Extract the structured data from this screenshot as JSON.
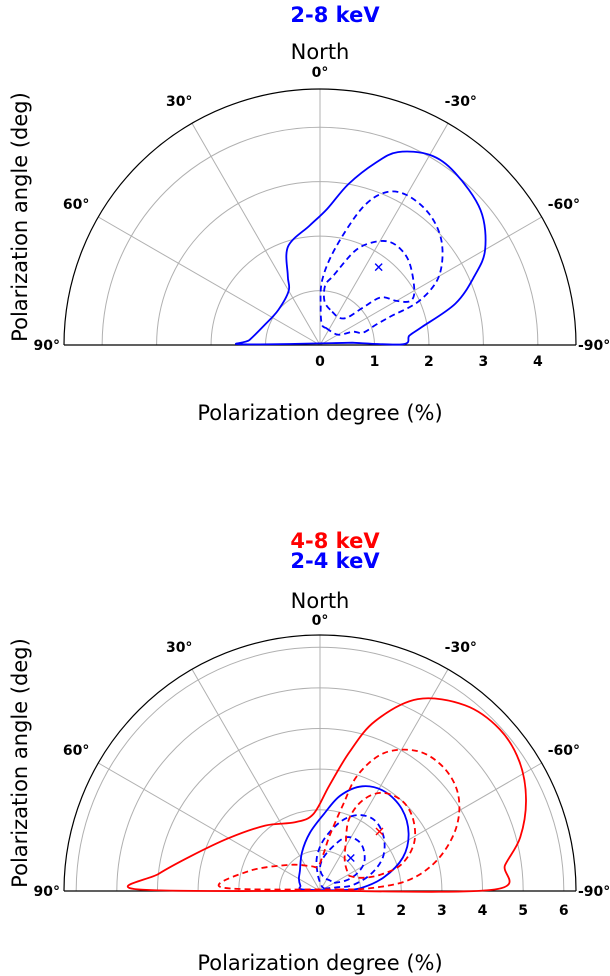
{
  "chart_data": [
    {
      "type": "polar-contour",
      "titles": [
        {
          "text": "2-8 keV",
          "color": "#0000ff"
        }
      ],
      "north_label": "North",
      "xlabel": "Polarization degree (%)",
      "ylabel": "Polarization angle (deg)",
      "radial_range": [
        0,
        4.7
      ],
      "radial_ticks": [
        "0",
        "1",
        "2",
        "3",
        "4"
      ],
      "angle_ticks": [
        {
          "angle": 0,
          "label": "0°"
        },
        {
          "angle": 30,
          "label": "30°"
        },
        {
          "angle": -30,
          "label": "-30°"
        },
        {
          "angle": 60,
          "label": "60°"
        },
        {
          "angle": -60,
          "label": "-60°"
        },
        {
          "angle": 90,
          "label": "90°"
        },
        {
          "angle": -90,
          "label": "-90°"
        }
      ],
      "grid": true,
      "series": [
        {
          "color": "#0000ff",
          "best_fit": {
            "pd": 1.79,
            "angle": -37
          },
          "contours": [
            {
              "style": "dashed",
              "points": [
                [
                  0.65,
                  -20
                ],
                [
                  0.61,
                  -35
                ],
                [
                  0.72,
                  -45
                ],
                [
                  1.05,
                  -49
                ],
                [
                  1.42,
                  -52
                ],
                [
                  1.62,
                  -60
                ],
                [
                  1.84,
                  -64
                ],
                [
                  2.0,
                  -60
                ],
                [
                  2.22,
                  -48
                ],
                [
                  2.3,
                  -40
                ],
                [
                  2.27,
                  -33
                ],
                [
                  2.08,
                  -26
                ],
                [
                  1.82,
                  -20
                ],
                [
                  1.3,
                  -11
                ],
                [
                  1.1,
                  -5
                ],
                [
                  0.8,
                  -6
                ],
                [
                  0.65,
                  -20
                ]
              ]
            },
            {
              "style": "dashed",
              "points": [
                [
                  0.33,
                  -20
                ],
                [
                  0.38,
                  -60
                ],
                [
                  0.65,
                  -68
                ],
                [
                  0.82,
                  -74
                ],
                [
                  1.1,
                  -70
                ],
                [
                  1.4,
                  -68
                ],
                [
                  2.0,
                  -66
                ],
                [
                  2.52,
                  -60
                ],
                [
                  2.92,
                  -50
                ],
                [
                  3.13,
                  -40
                ],
                [
                  3.18,
                  -30
                ],
                [
                  3.04,
                  -23
                ],
                [
                  2.62,
                  -17
                ],
                [
                  1.8,
                  -9
                ],
                [
                  1.2,
                  -2
                ],
                [
                  0.7,
                  -1
                ],
                [
                  0.38,
                  -5
                ],
                [
                  0.33,
                  -20
                ]
              ]
            },
            {
              "style": "solid",
              "points": [
                [
                  0.6,
                  -86
                ],
                [
                  1.52,
                  -89.5
                ],
                [
                  1.65,
                  -84
                ],
                [
                  1.9,
                  -80
                ],
                [
                  2.6,
                  -73
                ],
                [
                  3.1,
                  -66
                ],
                [
                  3.5,
                  -60
                ],
                [
                  3.85,
                  -50
                ],
                [
                  4.02,
                  -38
                ],
                [
                  4.03,
                  -30
                ],
                [
                  3.82,
                  -22
                ],
                [
                  3.5,
                  -17
                ],
                [
                  3.0,
                  -10
                ],
                [
                  2.5,
                  -3
                ],
                [
                  2.2,
                  5
                ],
                [
                  1.9,
                  18
                ],
                [
                  1.4,
                  25
                ],
                [
                  1.15,
                  30
                ],
                [
                  1.0,
                  50
                ],
                [
                  1.08,
                  70
                ],
                [
                  1.3,
                  86
                ],
                [
                  1.42,
                  89.5
                ],
                [
                  0.6,
                  -86
                ]
              ]
            }
          ]
        }
      ]
    },
    {
      "type": "polar-contour",
      "titles": [
        {
          "text": "4-8 keV",
          "color": "#ff0000"
        },
        {
          "text": "2-4 keV",
          "color": "#0000ff"
        }
      ],
      "north_label": "North",
      "xlabel": "Polarization degree (%)",
      "ylabel": "Polarization angle (deg)",
      "radial_range": [
        0,
        6.3
      ],
      "radial_ticks": [
        "0",
        "1",
        "2",
        "3",
        "4",
        "5",
        "6"
      ],
      "angle_ticks": [
        {
          "angle": 0,
          "label": "0°"
        },
        {
          "angle": 30,
          "label": "30°"
        },
        {
          "angle": -30,
          "label": "-30°"
        },
        {
          "angle": 60,
          "label": "60°"
        },
        {
          "angle": -60,
          "label": "-60°"
        },
        {
          "angle": 90,
          "label": "90°"
        },
        {
          "angle": -90,
          "label": "-90°"
        }
      ],
      "grid": true,
      "series": [
        {
          "color": "#0000ff",
          "best_fit": {
            "pd": 1.11,
            "angle": -43
          },
          "contours": [
            {
              "style": "dashed",
              "points": [
                [
                  0.4,
                  -60
                ],
                [
                  0.7,
                  -68
                ],
                [
                  1.0,
                  -65
                ],
                [
                  1.3,
                  -57
                ],
                [
                  1.5,
                  -45
                ],
                [
                  1.55,
                  -35
                ],
                [
                  1.45,
                  -25
                ],
                [
                  1.1,
                  -15
                ],
                [
                  0.8,
                  -5
                ],
                [
                  0.55,
                  0
                ],
                [
                  0.35,
                  -15
                ],
                [
                  0.35,
                  -40
                ],
                [
                  0.4,
                  -60
                ]
              ]
            },
            {
              "style": "dashed",
              "points": [
                [
                  0.12,
                  -60
                ],
                [
                  0.45,
                  -78
                ],
                [
                  0.8,
                  -80
                ],
                [
                  1.3,
                  -72
                ],
                [
                  1.75,
                  -62
                ],
                [
                  2.05,
                  -50
                ],
                [
                  2.2,
                  -38
                ],
                [
                  2.1,
                  -27
                ],
                [
                  1.8,
                  -17
                ],
                [
                  1.3,
                  -5
                ],
                [
                  0.85,
                  5
                ],
                [
                  0.45,
                  8
                ],
                [
                  0.15,
                  -10
                ],
                [
                  0.12,
                  -60
                ]
              ]
            },
            {
              "style": "solid",
              "points": [
                [
                  0.5,
                  -88
                ],
                [
                  1.0,
                  -86
                ],
                [
                  1.6,
                  -78
                ],
                [
                  2.2,
                  -68
                ],
                [
                  2.6,
                  -57
                ],
                [
                  2.85,
                  -45
                ],
                [
                  2.92,
                  -33
                ],
                [
                  2.78,
                  -22
                ],
                [
                  2.4,
                  -12
                ],
                [
                  1.9,
                  -3
                ],
                [
                  1.45,
                  10
                ],
                [
                  1.05,
                  25
                ],
                [
                  0.7,
                  45
                ],
                [
                  0.6,
                  60
                ],
                [
                  0.5,
                  75
                ],
                [
                  0.42,
                  85
                ],
                [
                  0.5,
                  -88
                ]
              ]
            }
          ]
        },
        {
          "color": "#ff0000",
          "best_fit": {
            "pd": 2.07,
            "angle": -45
          },
          "contours": [
            {
              "style": "dashed",
              "points": [
                [
                  0.8,
                  -62
                ],
                [
                  1.05,
                  -72
                ],
                [
                  1.5,
                  -75
                ],
                [
                  2.1,
                  -72
                ],
                [
                  2.6,
                  -63
                ],
                [
                  2.9,
                  -52
                ],
                [
                  3.0,
                  -42
                ],
                [
                  2.85,
                  -32
                ],
                [
                  2.45,
                  -25
                ],
                [
                  1.9,
                  -22
                ],
                [
                  1.35,
                  -28
                ],
                [
                  0.95,
                  -40
                ],
                [
                  0.8,
                  -62
                ]
              ]
            },
            {
              "style": "dashed",
              "points": [
                [
                  0.45,
                  -85
                ],
                [
                  1.2,
                  -87
                ],
                [
                  2.2,
                  -83
                ],
                [
                  3.0,
                  -75
                ],
                [
                  3.7,
                  -65
                ],
                [
                  4.15,
                  -55
                ],
                [
                  4.3,
                  -45
                ],
                [
                  4.2,
                  -35
                ],
                [
                  3.75,
                  -25
                ],
                [
                  3.0,
                  -18
                ],
                [
                  2.2,
                  -15
                ],
                [
                  1.4,
                  -10
                ],
                [
                  0.9,
                  -5
                ],
                [
                  0.6,
                  5
                ],
                [
                  0.65,
                  20
                ],
                [
                  1.0,
                  50
                ],
                [
                  1.8,
                  74
                ],
                [
                  2.4,
                  88
                ],
                [
                  0.45,
                  -85
                ]
              ]
            },
            {
              "style": "solid",
              "points": [
                [
                  0.3,
                  -89.5
                ],
                [
                  4.3,
                  -89.5
                ],
                [
                  4.6,
                  -82
                ],
                [
                  5.1,
                  -75
                ],
                [
                  5.55,
                  -66
                ],
                [
                  5.85,
                  -57
                ],
                [
                  5.95,
                  -48
                ],
                [
                  5.8,
                  -38
                ],
                [
                  5.3,
                  -27
                ],
                [
                  4.4,
                  -18
                ],
                [
                  3.5,
                  -12
                ],
                [
                  2.6,
                  -5
                ],
                [
                  1.9,
                  5
                ],
                [
                  1.8,
                  20
                ],
                [
                  2.1,
                  40
                ],
                [
                  2.6,
                  60
                ],
                [
                  3.3,
                  75
                ],
                [
                  4.0,
                  84
                ],
                [
                  4.48,
                  89.5
                ],
                [
                  0.3,
                  -89.5
                ]
              ]
            }
          ]
        }
      ]
    }
  ]
}
